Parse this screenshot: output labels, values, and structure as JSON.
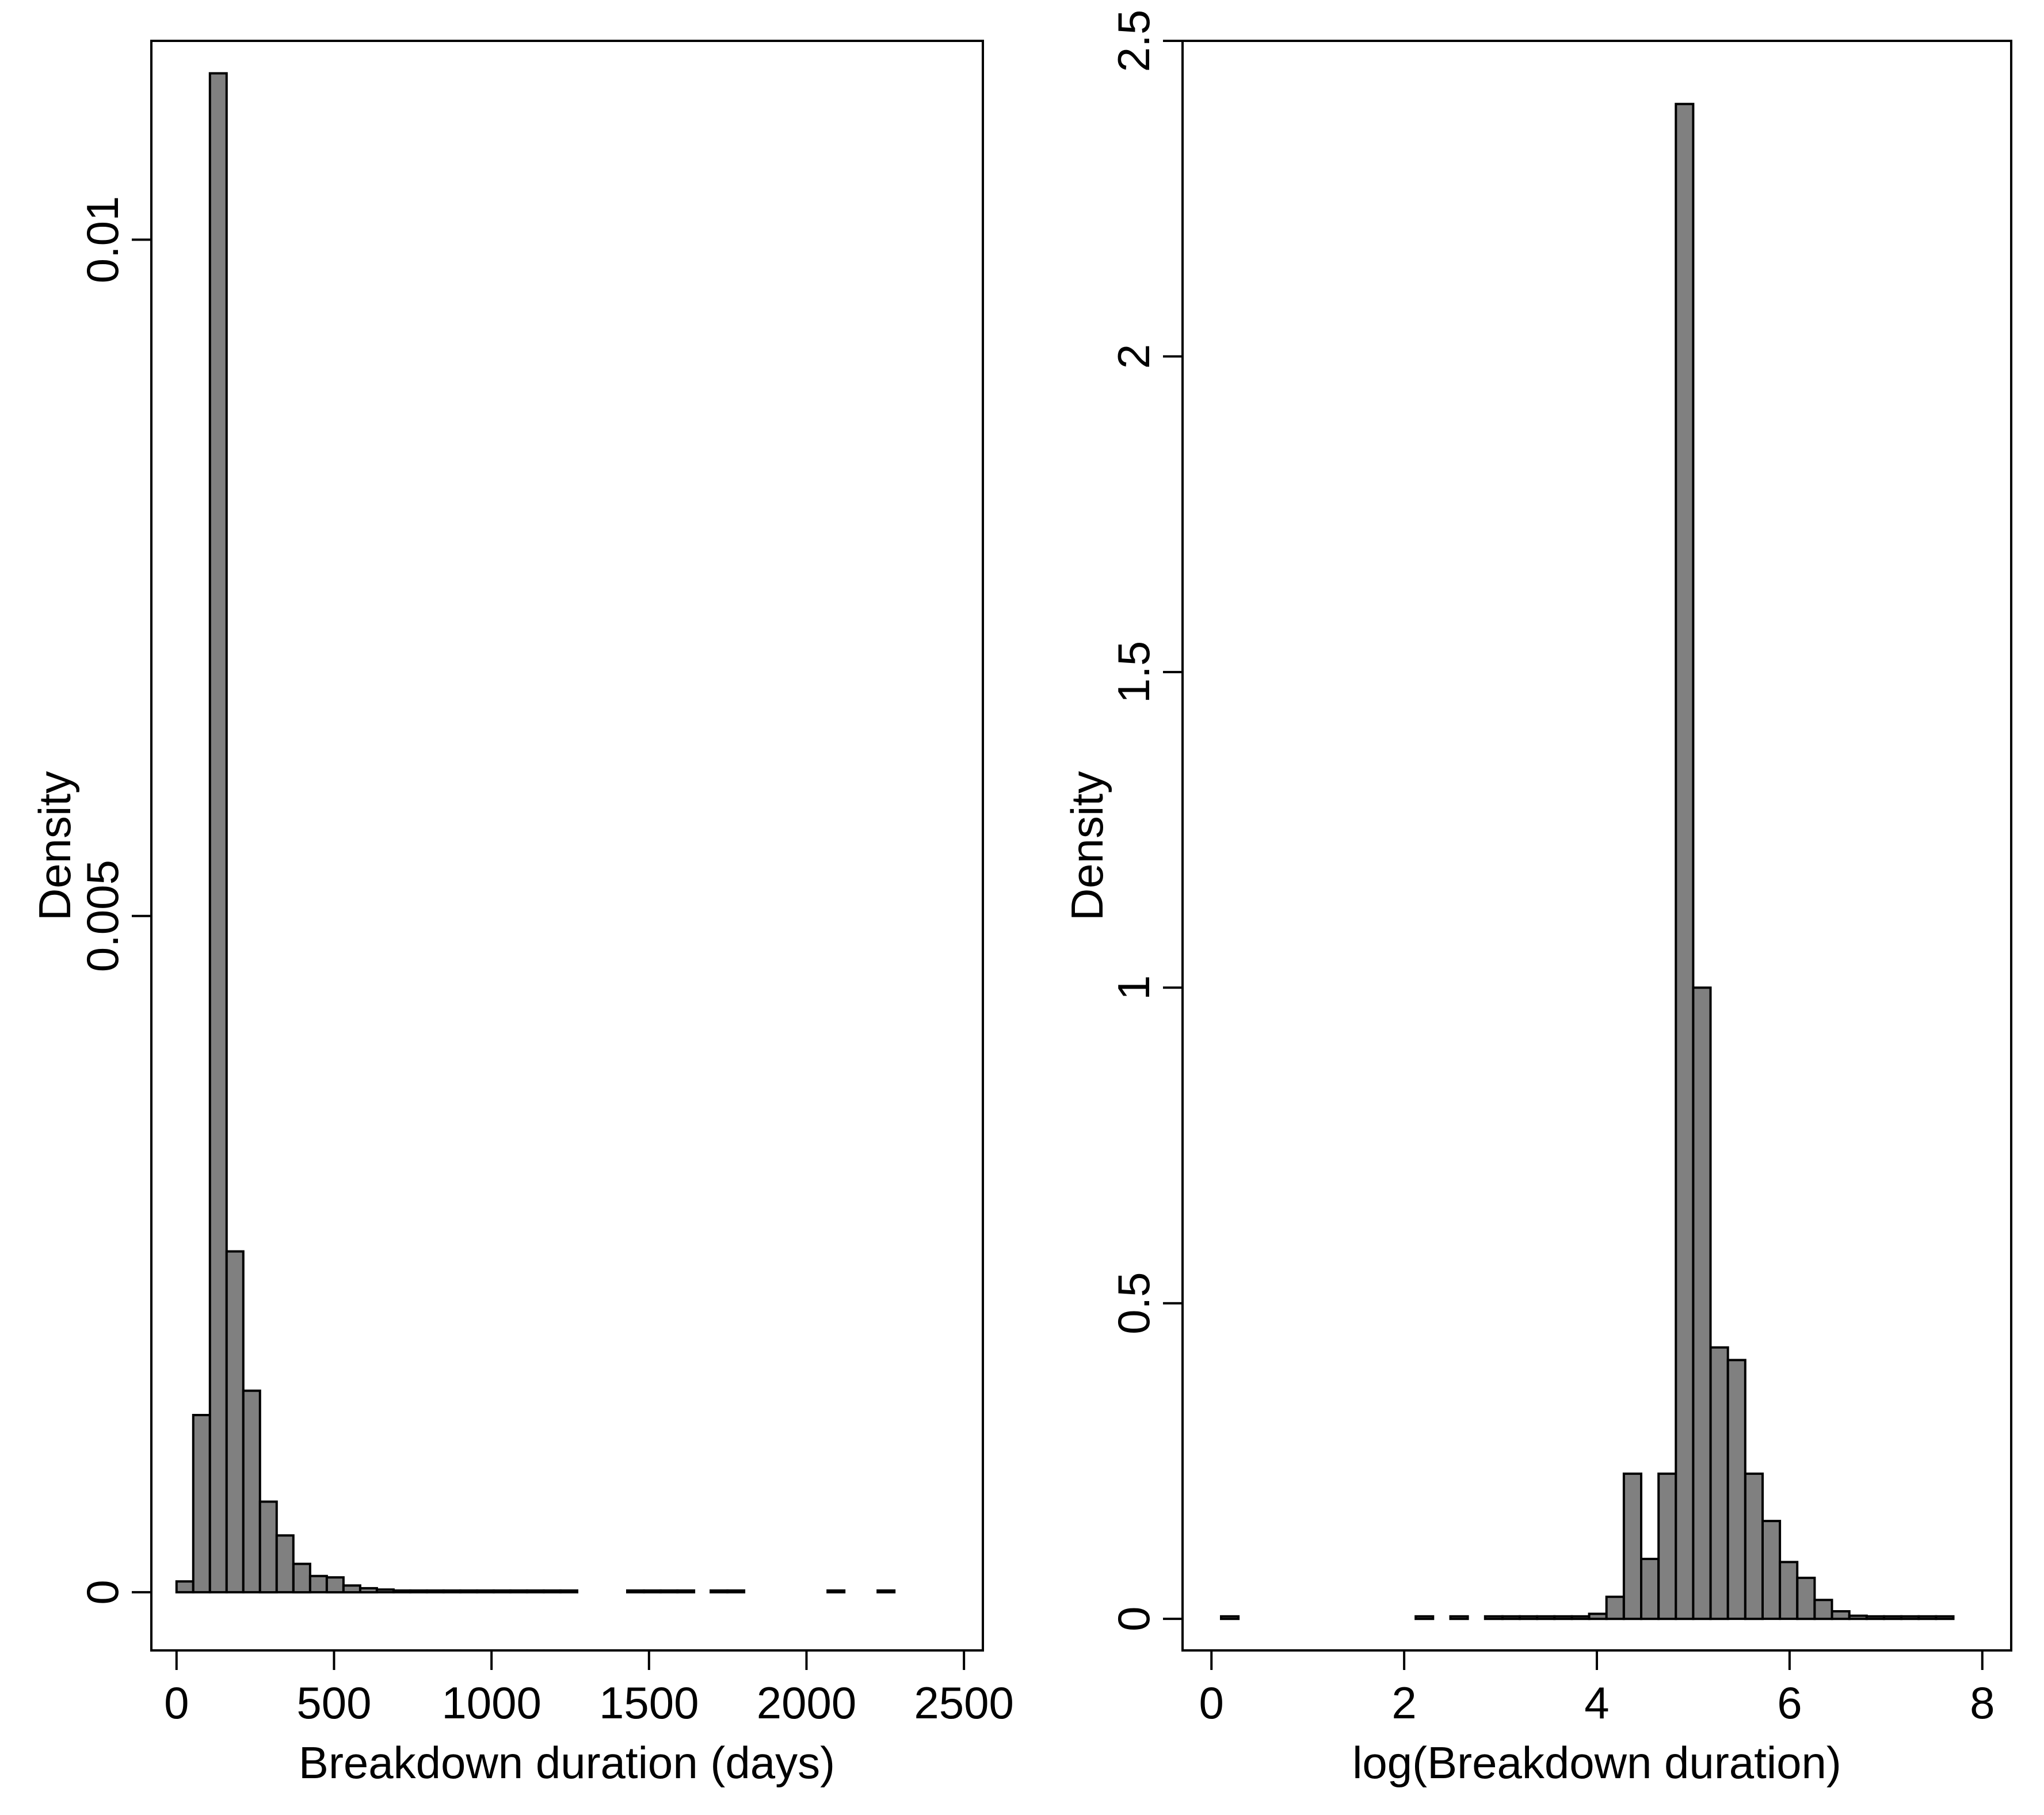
{
  "chart_data": [
    {
      "type": "bar",
      "subtype": "histogram",
      "xlabel": "Breakdown duration (days)",
      "ylabel": "Density",
      "xlim": [
        -80,
        2560
      ],
      "ylim": [
        -0.00043,
        0.01147
      ],
      "x_ticks": [
        0,
        500,
        1000,
        1500,
        2000,
        2500
      ],
      "x_tick_labels": [
        "0",
        "500",
        "1000",
        "1500",
        "2000",
        "2500"
      ],
      "y_ticks": [
        0,
        0.005,
        0.01
      ],
      "y_tick_labels": [
        "0",
        "0.005",
        "0.01"
      ],
      "grid": false,
      "bar_color": "#808080",
      "bin_width": 53,
      "bins_start": [
        0,
        53,
        106,
        159,
        212,
        265,
        318,
        371,
        424,
        477,
        530,
        583,
        636,
        689,
        742,
        795,
        848,
        901,
        954,
        1007,
        1060,
        1113,
        1166,
        1219,
        1431,
        1484,
        1537,
        1590,
        1696,
        1749,
        2067,
        2226
      ],
      "values": [
        8e-05,
        0.00131,
        0.01123,
        0.00252,
        0.00149,
        0.00067,
        0.00042,
        0.00021,
        0.00012,
        0.00011,
        5e-05,
        3e-05,
        2e-05,
        1e-05,
        1e-05,
        1e-05,
        1e-05,
        1e-05,
        1e-05,
        1e-05,
        1e-05,
        1e-05,
        1e-05,
        1e-05,
        1e-05,
        1e-05,
        1e-05,
        1e-05,
        1e-05,
        1e-05,
        1e-05,
        1e-05
      ]
    },
    {
      "type": "bar",
      "subtype": "histogram",
      "xlabel": "log(Breakdown duration)",
      "ylabel": "Density",
      "xlim": [
        -0.3,
        8.3
      ],
      "ylim": [
        -0.05,
        2.5
      ],
      "x_ticks": [
        0,
        2,
        4,
        6,
        8
      ],
      "x_tick_labels": [
        "0",
        "2",
        "4",
        "6",
        "8"
      ],
      "y_ticks": [
        0,
        0.5,
        1,
        1.5,
        2,
        2.5
      ],
      "y_tick_labels": [
        "0",
        "0.5",
        "1",
        "1.5",
        "2",
        "2.5"
      ],
      "grid": false,
      "bar_color": "#808080",
      "bin_width": 0.18,
      "bins_start": [
        0.1,
        2.12,
        2.48,
        2.84,
        3.02,
        3.2,
        3.38,
        3.56,
        3.74,
        3.92,
        4.1,
        4.28,
        4.46,
        4.64,
        4.82,
        5.0,
        5.18,
        5.36,
        5.54,
        5.72,
        5.9,
        6.08,
        6.26,
        6.44,
        6.62,
        6.8,
        6.98,
        7.16,
        7.34,
        7.52
      ],
      "values": [
        0.004,
        0.004,
        0.004,
        0.004,
        0.004,
        0.004,
        0.004,
        0.004,
        0.004,
        0.008,
        0.035,
        0.23,
        0.095,
        0.23,
        2.4,
        1.0,
        0.43,
        0.41,
        0.23,
        0.155,
        0.09,
        0.065,
        0.03,
        0.012,
        0.005,
        0.004,
        0.004,
        0.004,
        0.004,
        0.004
      ]
    }
  ]
}
